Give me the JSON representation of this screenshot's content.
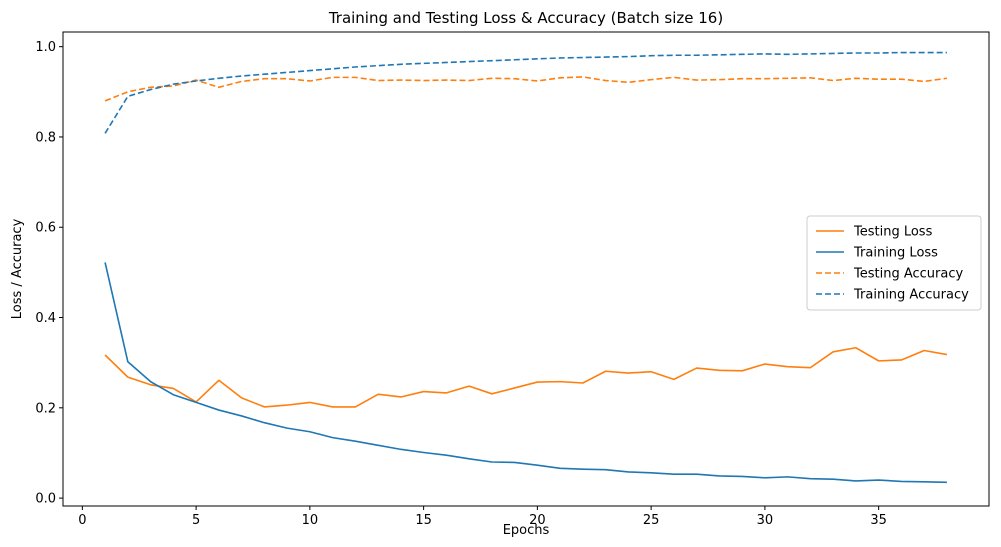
{
  "chart_data": {
    "type": "line",
    "title": "Training and Testing Loss & Accuracy (Batch size 16)",
    "xlabel": "Epochs",
    "ylabel": "Loss / Accuracy",
    "xlim": [
      -0.85,
      39.85
    ],
    "ylim": [
      -0.0175,
      1.0325
    ],
    "xticks": [
      0,
      5,
      10,
      15,
      20,
      25,
      30,
      35
    ],
    "yticks": [
      0.0,
      0.2,
      0.4,
      0.6,
      0.8,
      1.0
    ],
    "grid": false,
    "legend_position": "center-right",
    "x": [
      1,
      2,
      3,
      4,
      5,
      6,
      7,
      8,
      9,
      10,
      11,
      12,
      13,
      14,
      15,
      16,
      17,
      18,
      19,
      20,
      21,
      22,
      23,
      24,
      25,
      26,
      27,
      28,
      29,
      30,
      31,
      32,
      33,
      34,
      35,
      36,
      37,
      38
    ],
    "series": [
      {
        "name": "Testing Loss",
        "color": "#ff7f0e",
        "style": "solid",
        "values": [
          0.317,
          0.268,
          0.251,
          0.243,
          0.213,
          0.261,
          0.222,
          0.202,
          0.206,
          0.212,
          0.202,
          0.202,
          0.23,
          0.224,
          0.236,
          0.233,
          0.248,
          0.231,
          0.244,
          0.257,
          0.258,
          0.255,
          0.281,
          0.277,
          0.28,
          0.263,
          0.288,
          0.283,
          0.282,
          0.297,
          0.291,
          0.289,
          0.324,
          0.333,
          0.304,
          0.306,
          0.327,
          0.318
        ]
      },
      {
        "name": "Training Loss",
        "color": "#1f77b4",
        "style": "solid",
        "values": [
          0.522,
          0.302,
          0.258,
          0.229,
          0.212,
          0.195,
          0.182,
          0.167,
          0.155,
          0.147,
          0.134,
          0.126,
          0.117,
          0.108,
          0.101,
          0.095,
          0.087,
          0.08,
          0.079,
          0.073,
          0.066,
          0.064,
          0.063,
          0.058,
          0.056,
          0.053,
          0.053,
          0.049,
          0.048,
          0.045,
          0.047,
          0.043,
          0.042,
          0.038,
          0.04,
          0.037,
          0.036,
          0.035
        ]
      },
      {
        "name": "Testing Accuracy",
        "color": "#ff7f0e",
        "style": "dashed",
        "values": [
          0.88,
          0.9,
          0.91,
          0.913,
          0.926,
          0.91,
          0.923,
          0.929,
          0.929,
          0.924,
          0.932,
          0.932,
          0.925,
          0.926,
          0.925,
          0.926,
          0.925,
          0.93,
          0.929,
          0.924,
          0.931,
          0.933,
          0.925,
          0.921,
          0.927,
          0.932,
          0.926,
          0.927,
          0.929,
          0.929,
          0.93,
          0.931,
          0.925,
          0.93,
          0.928,
          0.928,
          0.923,
          0.93
        ]
      },
      {
        "name": "Training Accuracy",
        "color": "#1f77b4",
        "style": "dashed",
        "values": [
          0.808,
          0.89,
          0.905,
          0.917,
          0.924,
          0.93,
          0.935,
          0.939,
          0.943,
          0.947,
          0.951,
          0.955,
          0.958,
          0.961,
          0.963,
          0.965,
          0.967,
          0.969,
          0.971,
          0.973,
          0.975,
          0.976,
          0.977,
          0.978,
          0.98,
          0.981,
          0.981,
          0.982,
          0.983,
          0.984,
          0.983,
          0.984,
          0.985,
          0.986,
          0.986,
          0.987,
          0.987,
          0.987
        ]
      }
    ]
  }
}
